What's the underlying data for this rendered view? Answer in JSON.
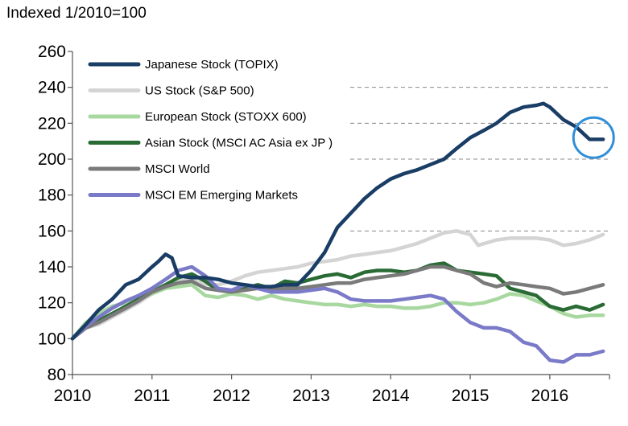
{
  "unit_label": "Indexed 1/2010=100",
  "chart_data": {
    "type": "line",
    "title": "",
    "xlabel": "",
    "ylabel": "Indexed 1/2010=100",
    "ylim": [
      80,
      260
    ],
    "xlim": [
      2010,
      2016.75
    ],
    "y_ticks": [
      "80",
      "100",
      "120",
      "140",
      "160",
      "180",
      "200",
      "220",
      "240",
      "260"
    ],
    "x_ticks": [
      "2010",
      "2011",
      "2012",
      "2013",
      "2014",
      "2015",
      "2016"
    ],
    "grid": "horizontal dashed at 160, 200, 220, 240",
    "legend_position": "top-left",
    "annotation": "blue circle highlighting latest TOPIX decline (2016)",
    "series": [
      {
        "name": "Japanese Stock (TOPIX)",
        "color": "#1a3d66",
        "points": [
          [
            2010.0,
            100
          ],
          [
            2010.17,
            108
          ],
          [
            2010.33,
            116
          ],
          [
            2010.5,
            122
          ],
          [
            2010.67,
            130
          ],
          [
            2010.83,
            133
          ],
          [
            2011.0,
            140
          ],
          [
            2011.08,
            143
          ],
          [
            2011.17,
            147
          ],
          [
            2011.25,
            145
          ],
          [
            2011.33,
            135
          ],
          [
            2011.5,
            134
          ],
          [
            2011.67,
            134
          ],
          [
            2011.83,
            133
          ],
          [
            2012.0,
            131
          ],
          [
            2012.17,
            130
          ],
          [
            2012.33,
            129
          ],
          [
            2012.5,
            129
          ],
          [
            2012.67,
            130
          ],
          [
            2012.83,
            130
          ],
          [
            2013.0,
            138
          ],
          [
            2013.17,
            148
          ],
          [
            2013.33,
            162
          ],
          [
            2013.5,
            170
          ],
          [
            2013.67,
            178
          ],
          [
            2013.83,
            184
          ],
          [
            2014.0,
            189
          ],
          [
            2014.17,
            192
          ],
          [
            2014.33,
            194
          ],
          [
            2014.5,
            197
          ],
          [
            2014.67,
            200
          ],
          [
            2014.83,
            206
          ],
          [
            2015.0,
            212
          ],
          [
            2015.17,
            216
          ],
          [
            2015.33,
            220
          ],
          [
            2015.5,
            226
          ],
          [
            2015.67,
            229
          ],
          [
            2015.83,
            230
          ],
          [
            2015.92,
            231
          ],
          [
            2016.0,
            229
          ],
          [
            2016.17,
            222
          ],
          [
            2016.33,
            218
          ],
          [
            2016.5,
            211
          ],
          [
            2016.67,
            211
          ]
        ]
      },
      {
        "name": "US Stock (S&P  500)",
        "color": "#d4d4d4",
        "points": [
          [
            2010.0,
            100
          ],
          [
            2010.17,
            106
          ],
          [
            2010.33,
            108
          ],
          [
            2010.5,
            112
          ],
          [
            2010.67,
            116
          ],
          [
            2010.83,
            120
          ],
          [
            2011.0,
            125
          ],
          [
            2011.17,
            129
          ],
          [
            2011.33,
            132
          ],
          [
            2011.5,
            133
          ],
          [
            2011.67,
            130
          ],
          [
            2011.83,
            130
          ],
          [
            2012.0,
            132
          ],
          [
            2012.17,
            135
          ],
          [
            2012.33,
            137
          ],
          [
            2012.5,
            138
          ],
          [
            2012.67,
            139
          ],
          [
            2012.83,
            140
          ],
          [
            2013.0,
            142
          ],
          [
            2013.17,
            143
          ],
          [
            2013.33,
            144
          ],
          [
            2013.5,
            146
          ],
          [
            2013.67,
            147
          ],
          [
            2013.83,
            148
          ],
          [
            2014.0,
            149
          ],
          [
            2014.17,
            151
          ],
          [
            2014.33,
            153
          ],
          [
            2014.5,
            156
          ],
          [
            2014.67,
            159
          ],
          [
            2014.83,
            160
          ],
          [
            2015.0,
            158
          ],
          [
            2015.1,
            152
          ],
          [
            2015.33,
            155
          ],
          [
            2015.5,
            156
          ],
          [
            2015.67,
            156
          ],
          [
            2015.83,
            156
          ],
          [
            2016.0,
            155
          ],
          [
            2016.17,
            152
          ],
          [
            2016.33,
            153
          ],
          [
            2016.5,
            155
          ],
          [
            2016.67,
            158
          ]
        ]
      },
      {
        "name": "European Stock (STOXX 600)",
        "color": "#a8d8a0",
        "points": [
          [
            2010.0,
            100
          ],
          [
            2010.17,
            109
          ],
          [
            2010.33,
            114
          ],
          [
            2010.5,
            118
          ],
          [
            2010.67,
            120
          ],
          [
            2010.83,
            122
          ],
          [
            2011.0,
            125
          ],
          [
            2011.17,
            128
          ],
          [
            2011.33,
            129
          ],
          [
            2011.5,
            130
          ],
          [
            2011.67,
            124
          ],
          [
            2011.83,
            123
          ],
          [
            2012.0,
            125
          ],
          [
            2012.17,
            124
          ],
          [
            2012.33,
            122
          ],
          [
            2012.5,
            124
          ],
          [
            2012.67,
            122
          ],
          [
            2012.83,
            121
          ],
          [
            2013.0,
            120
          ],
          [
            2013.17,
            119
          ],
          [
            2013.33,
            119
          ],
          [
            2013.5,
            118
          ],
          [
            2013.67,
            119
          ],
          [
            2013.83,
            118
          ],
          [
            2014.0,
            118
          ],
          [
            2014.17,
            117
          ],
          [
            2014.33,
            117
          ],
          [
            2014.5,
            118
          ],
          [
            2014.67,
            120
          ],
          [
            2014.83,
            120
          ],
          [
            2015.0,
            119
          ],
          [
            2015.17,
            120
          ],
          [
            2015.33,
            122
          ],
          [
            2015.5,
            125
          ],
          [
            2015.67,
            124
          ],
          [
            2015.83,
            121
          ],
          [
            2016.0,
            118
          ],
          [
            2016.17,
            114
          ],
          [
            2016.33,
            112
          ],
          [
            2016.5,
            113
          ],
          [
            2016.67,
            113
          ]
        ]
      },
      {
        "name": "Asian Stock (MSCI AC Asia ex JP )",
        "color": "#2a6b35",
        "points": [
          [
            2010.0,
            100
          ],
          [
            2010.17,
            108
          ],
          [
            2010.33,
            110
          ],
          [
            2010.5,
            114
          ],
          [
            2010.67,
            118
          ],
          [
            2010.83,
            122
          ],
          [
            2011.0,
            126
          ],
          [
            2011.17,
            130
          ],
          [
            2011.33,
            134
          ],
          [
            2011.5,
            136
          ],
          [
            2011.67,
            132
          ],
          [
            2011.83,
            127
          ],
          [
            2012.0,
            126
          ],
          [
            2012.17,
            128
          ],
          [
            2012.33,
            130
          ],
          [
            2012.5,
            128
          ],
          [
            2012.67,
            132
          ],
          [
            2012.83,
            131
          ],
          [
            2013.0,
            133
          ],
          [
            2013.17,
            135
          ],
          [
            2013.33,
            136
          ],
          [
            2013.5,
            134
          ],
          [
            2013.67,
            137
          ],
          [
            2013.83,
            138
          ],
          [
            2014.0,
            138
          ],
          [
            2014.17,
            137
          ],
          [
            2014.33,
            138
          ],
          [
            2014.5,
            141
          ],
          [
            2014.67,
            142
          ],
          [
            2014.83,
            138
          ],
          [
            2015.0,
            137
          ],
          [
            2015.17,
            136
          ],
          [
            2015.33,
            135
          ],
          [
            2015.5,
            128
          ],
          [
            2015.67,
            126
          ],
          [
            2015.83,
            124
          ],
          [
            2016.0,
            118
          ],
          [
            2016.17,
            116
          ],
          [
            2016.33,
            118
          ],
          [
            2016.5,
            116
          ],
          [
            2016.67,
            119
          ]
        ]
      },
      {
        "name": "MSCI World",
        "color": "#7a7a7a",
        "points": [
          [
            2010.0,
            100
          ],
          [
            2010.17,
            106
          ],
          [
            2010.33,
            109
          ],
          [
            2010.5,
            113
          ],
          [
            2010.67,
            117
          ],
          [
            2010.83,
            121
          ],
          [
            2011.0,
            126
          ],
          [
            2011.17,
            129
          ],
          [
            2011.33,
            131
          ],
          [
            2011.5,
            132
          ],
          [
            2011.67,
            128
          ],
          [
            2011.83,
            127
          ],
          [
            2012.0,
            126
          ],
          [
            2012.17,
            127
          ],
          [
            2012.33,
            128
          ],
          [
            2012.5,
            127
          ],
          [
            2012.67,
            128
          ],
          [
            2012.83,
            128
          ],
          [
            2013.0,
            129
          ],
          [
            2013.17,
            130
          ],
          [
            2013.33,
            131
          ],
          [
            2013.5,
            131
          ],
          [
            2013.67,
            133
          ],
          [
            2013.83,
            134
          ],
          [
            2014.0,
            135
          ],
          [
            2014.17,
            136
          ],
          [
            2014.33,
            138
          ],
          [
            2014.5,
            140
          ],
          [
            2014.67,
            140
          ],
          [
            2014.83,
            138
          ],
          [
            2015.0,
            136
          ],
          [
            2015.17,
            131
          ],
          [
            2015.33,
            129
          ],
          [
            2015.5,
            131
          ],
          [
            2015.67,
            130
          ],
          [
            2015.83,
            129
          ],
          [
            2016.0,
            128
          ],
          [
            2016.17,
            125
          ],
          [
            2016.33,
            126
          ],
          [
            2016.5,
            128
          ],
          [
            2016.67,
            130
          ]
        ]
      },
      {
        "name": "MSCI EM Emerging Markets",
        "color": "#7a7ac8",
        "points": [
          [
            2010.0,
            100
          ],
          [
            2010.17,
            107
          ],
          [
            2010.33,
            112
          ],
          [
            2010.5,
            117
          ],
          [
            2010.67,
            121
          ],
          [
            2010.83,
            124
          ],
          [
            2011.0,
            128
          ],
          [
            2011.17,
            133
          ],
          [
            2011.33,
            138
          ],
          [
            2011.5,
            140
          ],
          [
            2011.67,
            135
          ],
          [
            2011.83,
            128
          ],
          [
            2012.0,
            127
          ],
          [
            2012.17,
            130
          ],
          [
            2012.33,
            128
          ],
          [
            2012.5,
            126
          ],
          [
            2012.67,
            126
          ],
          [
            2012.83,
            126
          ],
          [
            2013.0,
            127
          ],
          [
            2013.17,
            128
          ],
          [
            2013.33,
            126
          ],
          [
            2013.5,
            122
          ],
          [
            2013.67,
            121
          ],
          [
            2013.83,
            121
          ],
          [
            2014.0,
            121
          ],
          [
            2014.17,
            122
          ],
          [
            2014.33,
            123
          ],
          [
            2014.5,
            124
          ],
          [
            2014.67,
            122
          ],
          [
            2014.83,
            115
          ],
          [
            2015.0,
            109
          ],
          [
            2015.17,
            106
          ],
          [
            2015.33,
            106
          ],
          [
            2015.5,
            104
          ],
          [
            2015.67,
            98
          ],
          [
            2015.83,
            96
          ],
          [
            2016.0,
            88
          ],
          [
            2016.17,
            87
          ],
          [
            2016.33,
            91
          ],
          [
            2016.5,
            91
          ],
          [
            2016.67,
            93
          ]
        ]
      }
    ]
  }
}
